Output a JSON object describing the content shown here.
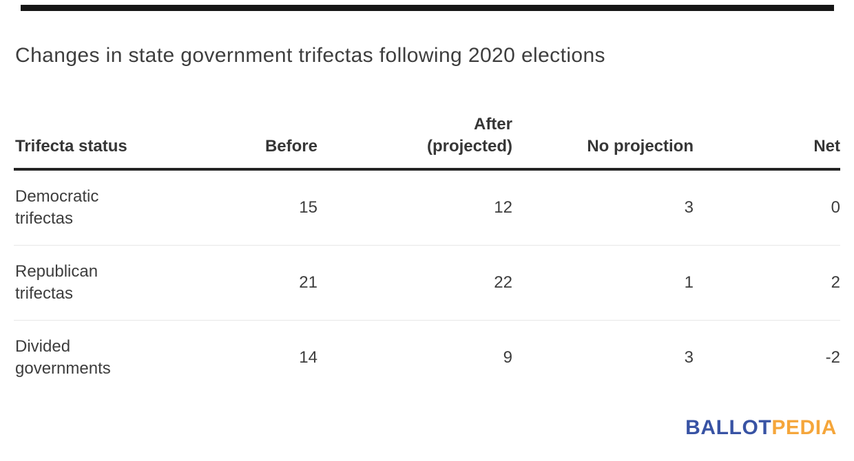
{
  "meta": {
    "background": "#ffffff",
    "top_bar_color": "#161616",
    "text_color": "#3d3d3d",
    "header_rule_color": "#242424",
    "row_separator_color": "#e7e7e7"
  },
  "title": "Changes in state government trifectas following 2020 elections",
  "table": {
    "headers": [
      "Trifecta status",
      "Before",
      "After (projected)",
      "No projection",
      "Net"
    ],
    "rows": [
      {
        "label": "Democratic trifectas",
        "values": [
          "15",
          "12",
          "3",
          "0"
        ]
      },
      {
        "label": "Republican trifectas",
        "values": [
          "21",
          "22",
          "1",
          "2"
        ]
      },
      {
        "label": "Divided governments",
        "values": [
          "14",
          "9",
          "3",
          "-2"
        ]
      }
    ]
  },
  "logo": {
    "part1": "BALLOT",
    "part2": "PEDIA",
    "blue": "#3853a4",
    "gold": "#f5a63b"
  },
  "chart_data": {
    "type": "table",
    "title": "Changes in state government trifectas following 2020 elections",
    "columns": [
      "Trifecta status",
      "Before",
      "After (projected)",
      "No projection",
      "Net"
    ],
    "rows": [
      [
        "Democratic trifectas",
        15,
        12,
        3,
        0
      ],
      [
        "Republican trifectas",
        21,
        22,
        1,
        2
      ],
      [
        "Divided governments",
        14,
        9,
        3,
        -2
      ]
    ],
    "source_logo": "BALLOTPEDIA"
  }
}
